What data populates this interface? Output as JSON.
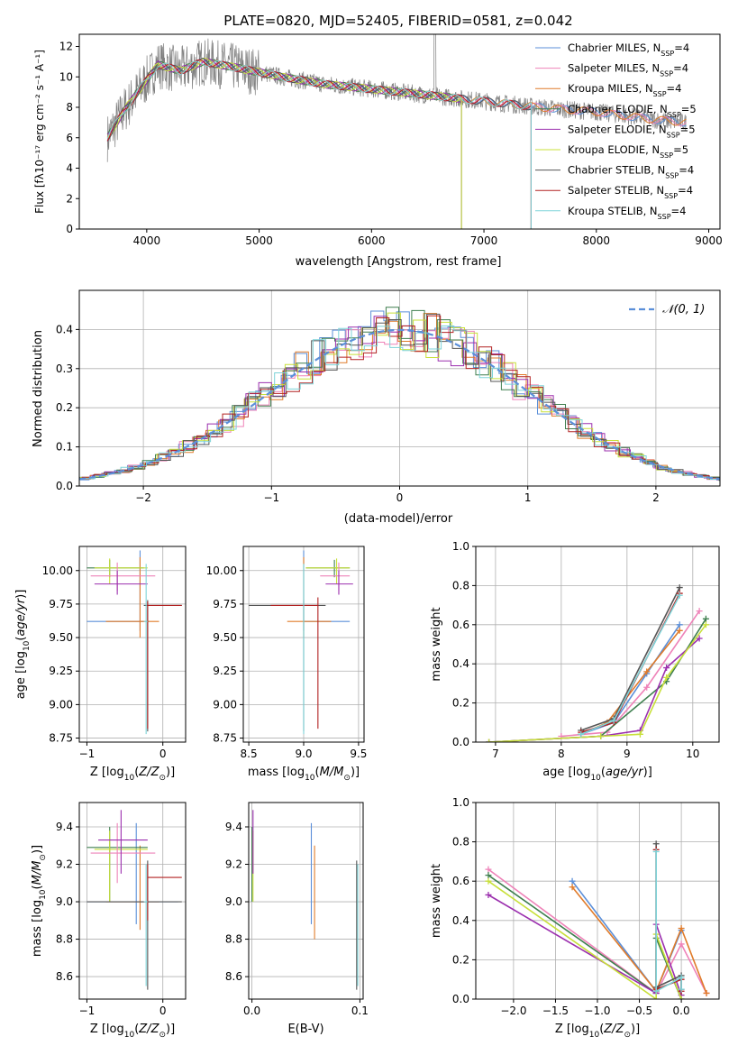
{
  "figure": {
    "title": "PLATE=0820, MJD=52405, FIBERID=0581, z=0.042"
  },
  "colors": {
    "Chabrier MILES": "#5b8fd9",
    "Salpeter MILES": "#ee82b8",
    "Kroupa MILES": "#e07b2a",
    "Chabrier ELODIE": "#3f7f4f",
    "Salpeter ELODIE": "#9b2fae",
    "Kroupa ELODIE": "#c8e03a",
    "Chabrier STELIB": "#555555",
    "Salpeter STELIB": "#b22222",
    "Kroupa STELIB": "#7dd3d8",
    "data": "#808080",
    "normal": "#5b8fd9"
  },
  "chart_data": [
    {
      "id": "spectrum",
      "type": "line",
      "title": "PLATE=0820, MJD=52405, FIBERID=0581, z=0.042",
      "xlabel": "wavelength [Angstrom, rest frame]",
      "ylabel": "Flux [fλ10⁻¹⁷ erg cm⁻² s⁻¹ A⁻¹]",
      "xlim": [
        3400,
        9100
      ],
      "ylim": [
        0,
        12.8
      ],
      "xticks": [
        4000,
        5000,
        6000,
        7000,
        8000,
        9000
      ],
      "yticks": [
        0,
        2,
        4,
        6,
        8,
        10,
        12
      ],
      "continuum_points": [
        [
          3650,
          6.0
        ],
        [
          3800,
          7.8
        ],
        [
          3950,
          9.3
        ],
        [
          4100,
          10.8
        ],
        [
          4300,
          10.4
        ],
        [
          4500,
          11.0
        ],
        [
          4800,
          10.6
        ],
        [
          5200,
          10.0
        ],
        [
          5600,
          9.5
        ],
        [
          6000,
          9.2
        ],
        [
          6500,
          8.8
        ],
        [
          7000,
          8.4
        ],
        [
          7500,
          8.0
        ],
        [
          8000,
          7.7
        ],
        [
          8500,
          7.2
        ],
        [
          8800,
          7.0
        ]
      ],
      "legend": [
        {
          "label": "Chabrier MILES, N",
          "sub": "SSP",
          "suffix": "=4"
        },
        {
          "label": "Salpeter MILES, N",
          "sub": "SSP",
          "suffix": "=4"
        },
        {
          "label": "Kroupa MILES, N",
          "sub": "SSP",
          "suffix": "=4"
        },
        {
          "label": "Chabrier ELODIE, N",
          "sub": "SSP",
          "suffix": "=5"
        },
        {
          "label": "Salpeter ELODIE, N",
          "sub": "SSP",
          "suffix": "=5"
        },
        {
          "label": "Kroupa ELODIE, N",
          "sub": "SSP",
          "suffix": "=5"
        },
        {
          "label": "Chabrier STELIB, N",
          "sub": "SSP",
          "suffix": "=4"
        },
        {
          "label": "Salpeter STELIB, N",
          "sub": "SSP",
          "suffix": "=4"
        },
        {
          "label": "Kroupa STELIB, N",
          "sub": "SSP",
          "suffix": "=4"
        }
      ],
      "legend_placement": "upper-right"
    },
    {
      "id": "residuals",
      "type": "histogram",
      "xlabel": "(data-model)/error",
      "ylabel": "Normed distribution",
      "xlim": [
        -2.5,
        2.5
      ],
      "ylim": [
        0,
        0.5
      ],
      "xticks": [
        -2,
        -1,
        0,
        1,
        2
      ],
      "yticks": [
        0.0,
        0.1,
        0.2,
        0.3,
        0.4
      ],
      "bin_width": 0.1,
      "legend": [
        "𝒩(0, 1)"
      ],
      "legend_placement": "upper-right",
      "grid": true
    },
    {
      "id": "age_vs_Z",
      "type": "errorbar",
      "xlabel": "Z [log10(Z/Z⊙)]",
      "ylabel": "age  [log10(age/yr)]",
      "xlim": [
        -1.1,
        0.3
      ],
      "ylim": [
        8.72,
        10.18
      ],
      "xticks": [
        -1,
        0
      ],
      "yticks": [
        8.75,
        9.0,
        9.25,
        9.5,
        9.75,
        10.0
      ],
      "grid": true,
      "points": [
        {
          "s": "Chabrier MILES",
          "x": -0.3,
          "y": 9.62,
          "xe": [
            -1.0,
            -0.25
          ],
          "ye": [
            9.55,
            10.15
          ]
        },
        {
          "s": "Kroupa MILES",
          "x": -0.3,
          "y": 9.62,
          "xe": [
            -0.75,
            -0.05
          ],
          "ye": [
            9.5,
            10.1
          ]
        },
        {
          "s": "Chabrier ELODIE",
          "x": -0.7,
          "y": 10.02,
          "xe": [
            -1.0,
            -0.25
          ],
          "ye": [
            9.95,
            10.08
          ]
        },
        {
          "s": "Kroupa ELODIE",
          "x": -0.7,
          "y": 10.02,
          "xe": [
            -0.9,
            -0.2
          ],
          "ye": [
            9.9,
            10.09
          ]
        },
        {
          "s": "Salpeter MILES",
          "x": -0.6,
          "y": 9.96,
          "xe": [
            -0.95,
            -0.1
          ],
          "ye": [
            9.85,
            10.06
          ]
        },
        {
          "s": "Salpeter ELODIE",
          "x": -0.6,
          "y": 9.9,
          "xe": [
            -0.9,
            -0.2
          ],
          "ye": [
            9.82,
            10.0
          ]
        },
        {
          "s": "Chabrier STELIB",
          "x": -0.2,
          "y": 9.74,
          "xe": [
            -0.25,
            0.25
          ],
          "ye": [
            8.8,
            9.78
          ]
        },
        {
          "s": "Salpeter STELIB",
          "x": -0.2,
          "y": 9.74,
          "xe": [
            -0.2,
            0.25
          ],
          "ye": [
            8.82,
            9.77
          ]
        },
        {
          "s": "Kroupa STELIB",
          "x": -0.22,
          "y": 9.62,
          "xe": [
            -0.25,
            -0.2
          ],
          "ye": [
            8.78,
            10.05
          ]
        }
      ]
    },
    {
      "id": "age_vs_mass",
      "type": "errorbar",
      "xlabel": "mass [log10(M/M⊙)]",
      "ylabel": "",
      "xlim": [
        8.45,
        9.55
      ],
      "ylim": [
        8.72,
        10.18
      ],
      "xticks": [
        8.5,
        9.0,
        9.5
      ],
      "yticks": [
        8.75,
        9.0,
        9.25,
        9.5,
        9.75,
        10.0
      ],
      "grid": true,
      "points": [
        {
          "s": "Chabrier MILES",
          "x": 9.0,
          "y": 9.62,
          "xe": [
            9.0,
            9.42
          ],
          "ye": [
            9.55,
            10.15
          ]
        },
        {
          "s": "Kroupa MILES",
          "x": 9.0,
          "y": 9.62,
          "xe": [
            8.85,
            9.25
          ],
          "ye": [
            9.5,
            10.1
          ]
        },
        {
          "s": "Chabrier ELODIE",
          "x": 9.28,
          "y": 10.02,
          "xe": [
            9.02,
            9.42
          ],
          "ye": [
            9.95,
            10.08
          ]
        },
        {
          "s": "Kroupa ELODIE",
          "x": 9.3,
          "y": 10.02,
          "xe": [
            9.02,
            9.42
          ],
          "ye": [
            9.9,
            10.09
          ]
        },
        {
          "s": "Salpeter MILES",
          "x": 9.32,
          "y": 9.96,
          "xe": [
            9.15,
            9.42
          ],
          "ye": [
            9.85,
            10.06
          ]
        },
        {
          "s": "Salpeter ELODIE",
          "x": 9.32,
          "y": 9.9,
          "xe": [
            9.2,
            9.45
          ],
          "ye": [
            9.82,
            10.0
          ]
        },
        {
          "s": "Chabrier STELIB",
          "x": 9.0,
          "y": 9.74,
          "xe": [
            8.5,
            9.2
          ],
          "ye": [
            8.8,
            9.78
          ]
        },
        {
          "s": "Salpeter STELIB",
          "x": 9.13,
          "y": 9.74,
          "xe": [
            8.7,
            9.13
          ],
          "ye": [
            8.82,
            9.8
          ]
        },
        {
          "s": "Kroupa STELIB",
          "x": 9.0,
          "y": 9.62,
          "xe": [
            9.0,
            9.0
          ],
          "ye": [
            8.78,
            10.05
          ]
        }
      ]
    },
    {
      "id": "massweight_vs_age",
      "type": "line",
      "xlabel": "age  [log10(age/yr)]",
      "ylabel": "mass weight",
      "xlim": [
        6.7,
        10.4
      ],
      "ylim": [
        0,
        1.0
      ],
      "xticks": [
        7,
        8,
        9,
        10
      ],
      "yticks": [
        0.0,
        0.2,
        0.4,
        0.6,
        0.8,
        1.0
      ],
      "grid": true,
      "series": [
        {
          "s": "Chabrier MILES",
          "x": [
            8.3,
            8.8,
            9.3,
            9.8
          ],
          "y": [
            0.04,
            0.1,
            0.35,
            0.6
          ]
        },
        {
          "s": "Salpeter MILES",
          "x": [
            8.0,
            8.7,
            9.3,
            10.1
          ],
          "y": [
            0.03,
            0.05,
            0.28,
            0.67
          ]
        },
        {
          "s": "Kroupa MILES",
          "x": [
            8.3,
            8.7,
            9.3,
            9.8
          ],
          "y": [
            0.04,
            0.1,
            0.36,
            0.57
          ]
        },
        {
          "s": "Chabrier ELODIE",
          "x": [
            6.9,
            8.6,
            9.6,
            10.2
          ],
          "y": [
            0.0,
            0.03,
            0.31,
            0.63
          ]
        },
        {
          "s": "Salpeter ELODIE",
          "x": [
            6.9,
            8.6,
            9.2,
            9.6,
            10.1
          ],
          "y": [
            0.0,
            0.03,
            0.06,
            0.38,
            0.53
          ]
        },
        {
          "s": "Kroupa ELODIE",
          "x": [
            6.9,
            8.6,
            9.2,
            9.6,
            10.2
          ],
          "y": [
            0.0,
            0.03,
            0.04,
            0.33,
            0.6
          ]
        },
        {
          "s": "Chabrier STELIB",
          "x": [
            8.3,
            8.8,
            9.8
          ],
          "y": [
            0.06,
            0.12,
            0.79
          ]
        },
        {
          "s": "Salpeter STELIB",
          "x": [
            8.3,
            8.8,
            9.8
          ],
          "y": [
            0.05,
            0.1,
            0.76
          ]
        },
        {
          "s": "Kroupa STELIB",
          "x": [
            8.3,
            8.8,
            9.8
          ],
          "y": [
            0.04,
            0.11,
            0.75
          ]
        }
      ]
    },
    {
      "id": "mass_vs_Z",
      "type": "errorbar",
      "xlabel": "Z [log10(Z/Z⊙)]",
      "ylabel": "mass [log10(M/M⊙)]",
      "xlim": [
        -1.1,
        0.3
      ],
      "ylim": [
        8.48,
        9.53
      ],
      "xticks": [
        -1,
        0
      ],
      "yticks": [
        8.6,
        8.8,
        9.0,
        9.2,
        9.4
      ],
      "grid": true,
      "points": [
        {
          "s": "Chabrier MILES",
          "x": -0.35,
          "y": 9.0,
          "xe": [
            -1.0,
            0.2
          ],
          "ye": [
            8.88,
            9.42
          ]
        },
        {
          "s": "Kroupa MILES",
          "x": -0.3,
          "y": 9.0,
          "xe": [
            -0.75,
            -0.05
          ],
          "ye": [
            8.85,
            9.3
          ]
        },
        {
          "s": "Chabrier ELODIE",
          "x": -0.7,
          "y": 9.29,
          "xe": [
            -1.0,
            -0.2
          ],
          "ye": [
            9.0,
            9.4
          ]
        },
        {
          "s": "Kroupa ELODIE",
          "x": -0.7,
          "y": 9.28,
          "xe": [
            -0.9,
            -0.2
          ],
          "ye": [
            9.0,
            9.38
          ]
        },
        {
          "s": "Salpeter MILES",
          "x": -0.6,
          "y": 9.26,
          "xe": [
            -0.95,
            -0.1
          ],
          "ye": [
            9.1,
            9.42
          ]
        },
        {
          "s": "Salpeter ELODIE",
          "x": -0.55,
          "y": 9.33,
          "xe": [
            -0.85,
            -0.2
          ],
          "ye": [
            9.15,
            9.49
          ]
        },
        {
          "s": "Chabrier STELIB",
          "x": -0.2,
          "y": 9.0,
          "xe": [
            -1.0,
            0.25
          ],
          "ye": [
            8.53,
            9.22
          ]
        },
        {
          "s": "Salpeter STELIB",
          "x": -0.2,
          "y": 9.13,
          "xe": [
            -0.2,
            0.25
          ],
          "ye": [
            8.9,
            9.2
          ]
        },
        {
          "s": "Kroupa STELIB",
          "x": -0.22,
          "y": 9.0,
          "xe": [
            -0.25,
            -0.2
          ],
          "ye": [
            8.55,
            9.2
          ]
        }
      ]
    },
    {
      "id": "mass_vs_ebv",
      "type": "errorbar",
      "xlabel": "E(B-V)",
      "ylabel": "",
      "xlim": [
        -0.003,
        0.103
      ],
      "ylim": [
        8.48,
        9.53
      ],
      "xticks": [
        0.0,
        0.1
      ],
      "yticks": [
        8.6,
        8.8,
        9.0,
        9.2,
        9.4
      ],
      "grid": true,
      "points": [
        {
          "s": "Chabrier MILES",
          "x": 0.055,
          "y": 9.0,
          "ye": [
            8.88,
            9.42
          ]
        },
        {
          "s": "Kroupa MILES",
          "x": 0.058,
          "y": 9.0,
          "ye": [
            8.8,
            9.3
          ]
        },
        {
          "s": "Chabrier ELODIE",
          "x": 0.0,
          "y": 9.29,
          "ye": [
            9.0,
            9.4
          ]
        },
        {
          "s": "Kroupa ELODIE",
          "x": 0.001,
          "y": 9.2,
          "ye": [
            9.0,
            9.38
          ]
        },
        {
          "s": "Salpeter ELODIE",
          "x": 0.001,
          "y": 9.3,
          "ye": [
            9.15,
            9.49
          ]
        },
        {
          "s": "Chabrier STELIB",
          "x": 0.097,
          "y": 9.0,
          "ye": [
            8.53,
            9.22
          ]
        },
        {
          "s": "Kroupa STELIB",
          "x": 0.098,
          "y": 9.0,
          "ye": [
            8.55,
            9.2
          ]
        }
      ]
    },
    {
      "id": "massweight_vs_Z",
      "type": "line",
      "xlabel": "Z [log10(Z/Z⊙)]",
      "ylabel": "mass weight",
      "xlim": [
        -2.45,
        0.45
      ],
      "ylim": [
        0,
        1.0
      ],
      "xticks": [
        -2.0,
        -1.5,
        -1.0,
        -0.5,
        0.0
      ],
      "yticks": [
        0.0,
        0.2,
        0.4,
        0.6,
        0.8,
        1.0
      ],
      "grid": true,
      "series": [
        {
          "s": "Chabrier MILES",
          "x": [
            -1.3,
            -0.3,
            0.0
          ],
          "y": [
            0.6,
            0.04,
            0.35
          ]
        },
        {
          "s": "Salpeter MILES",
          "x": [
            -2.3,
            -0.3,
            0.0,
            0.3
          ],
          "y": [
            0.66,
            0.03,
            0.28,
            0.03
          ]
        },
        {
          "s": "Kroupa MILES",
          "x": [
            -1.3,
            -0.3,
            0.0,
            0.3
          ],
          "y": [
            0.57,
            0.04,
            0.36,
            0.03
          ]
        },
        {
          "s": "Chabrier ELODIE",
          "x": [
            -2.3,
            -0.3,
            -0.3,
            0.0
          ],
          "y": [
            0.63,
            0.03,
            0.31,
            0.0
          ]
        },
        {
          "s": "Salpeter ELODIE",
          "x": [
            -2.3,
            -0.3,
            -0.3,
            0.0
          ],
          "y": [
            0.53,
            0.03,
            0.38,
            0.02
          ]
        },
        {
          "s": "Kroupa ELODIE",
          "x": [
            -2.3,
            -0.3,
            -0.3,
            0.0
          ],
          "y": [
            0.6,
            0.0,
            0.33,
            0.0
          ]
        },
        {
          "s": "Chabrier STELIB",
          "x": [
            -0.3,
            -0.3,
            0.0,
            0.0
          ],
          "y": [
            0.79,
            0.06,
            0.12,
            0.05
          ]
        },
        {
          "s": "Salpeter STELIB",
          "x": [
            -0.3,
            -0.3,
            0.0,
            0.0
          ],
          "y": [
            0.76,
            0.05,
            0.1,
            0.04
          ]
        },
        {
          "s": "Kroupa STELIB",
          "x": [
            -0.3,
            -0.3,
            0.0,
            0.0
          ],
          "y": [
            0.75,
            0.04,
            0.11,
            0.05
          ]
        }
      ]
    }
  ]
}
